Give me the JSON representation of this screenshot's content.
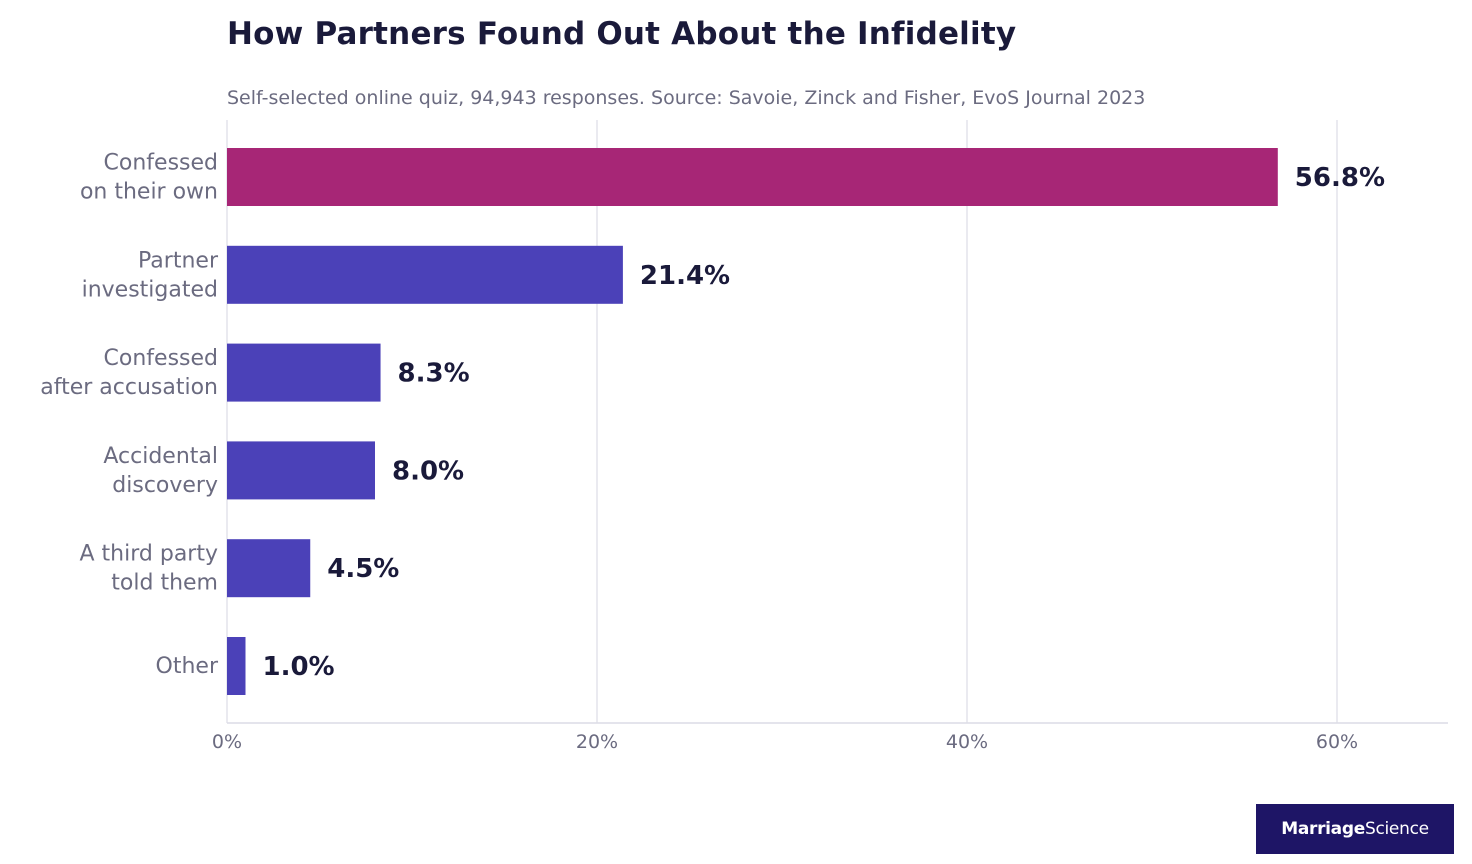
{
  "chart_data": {
    "type": "bar",
    "orientation": "horizontal",
    "title": "How Partners Found Out About the Infidelity",
    "subtitle": "Self-selected online quiz, 94,943 responses. Source: Savoie, Zinck and Fisher, EvoS Journal 2023",
    "categories": [
      [
        "Confessed",
        "on their own"
      ],
      [
        "Partner",
        "investigated"
      ],
      [
        "Confessed",
        "after accusation"
      ],
      [
        "Accidental",
        "discovery"
      ],
      [
        "A third party",
        "told them"
      ],
      [
        "Other"
      ]
    ],
    "values": [
      56.8,
      21.4,
      8.3,
      8.0,
      4.5,
      1.0
    ],
    "value_labels": [
      "56.8%",
      "21.4%",
      "8.3%",
      "8.0%",
      "4.5%",
      "1.0%"
    ],
    "bar_colors": [
      "#a72676",
      "#4b41b8",
      "#4b41b8",
      "#4b41b8",
      "#4b41b8",
      "#4b41b8"
    ],
    "xlim": [
      0,
      66
    ],
    "x_ticks": [
      0,
      20,
      40,
      60
    ],
    "x_tick_labels": [
      "0%",
      "20%",
      "40%",
      "60%"
    ],
    "grid": "vertical",
    "legend": "none"
  },
  "brand": {
    "part1": "Marriage",
    "part2": "Science"
  },
  "colors": {
    "highlight": "#a72676",
    "bar": "#4b41b8",
    "title": "#1a1a3a",
    "muted_text": "#6b6b80",
    "grid": "#dcdce6",
    "brand_bg": "#1e1566"
  }
}
